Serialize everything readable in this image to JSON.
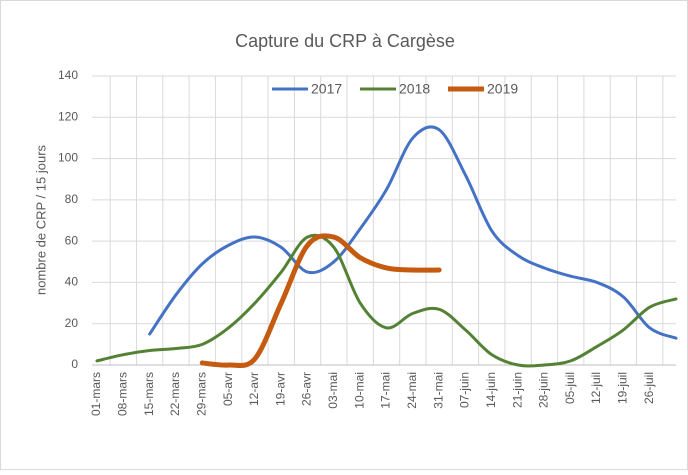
{
  "chart_data": {
    "type": "line",
    "title": "Capture du CRP à Cargèse",
    "ylabel": "nombre de CRP / 15 jours",
    "categories": [
      "01-mars",
      "08-mars",
      "15-mars",
      "22-mars",
      "29-mars",
      "05-avr",
      "12-avr",
      "19-avr",
      "26-avr",
      "03-mai",
      "10-mai",
      "17-mai",
      "24-mai",
      "31-mai",
      "07-juin",
      "14-juin",
      "21-juin",
      "28-juin",
      "05-juil",
      "12-juil",
      "19-juil",
      "26-juil",
      null
    ],
    "series": [
      {
        "name": "2017",
        "color": "#4472c4",
        "values": [
          null,
          null,
          15,
          34,
          49,
          58,
          62,
          57,
          45,
          50,
          66,
          85,
          110,
          114,
          92,
          65,
          53,
          47,
          43,
          40,
          33,
          18,
          13
        ]
      },
      {
        "name": "2018",
        "color": "#548235",
        "values": [
          2,
          5,
          7,
          8,
          10,
          18,
          30,
          45,
          62,
          57,
          30,
          18,
          25,
          27,
          17,
          5,
          0,
          0,
          2,
          9,
          17,
          28,
          32
        ]
      },
      {
        "name": "2019",
        "color": "#c55a11",
        "values": [
          null,
          null,
          null,
          null,
          1,
          0,
          3,
          30,
          58,
          62,
          52,
          47,
          46,
          46,
          null,
          null,
          null,
          null,
          null,
          null,
          null,
          null,
          null
        ]
      }
    ],
    "ylim": [
      0,
      140
    ],
    "yticks": [
      0,
      20,
      40,
      60,
      80,
      100,
      120,
      140
    ],
    "grid": true,
    "legend": "top"
  }
}
